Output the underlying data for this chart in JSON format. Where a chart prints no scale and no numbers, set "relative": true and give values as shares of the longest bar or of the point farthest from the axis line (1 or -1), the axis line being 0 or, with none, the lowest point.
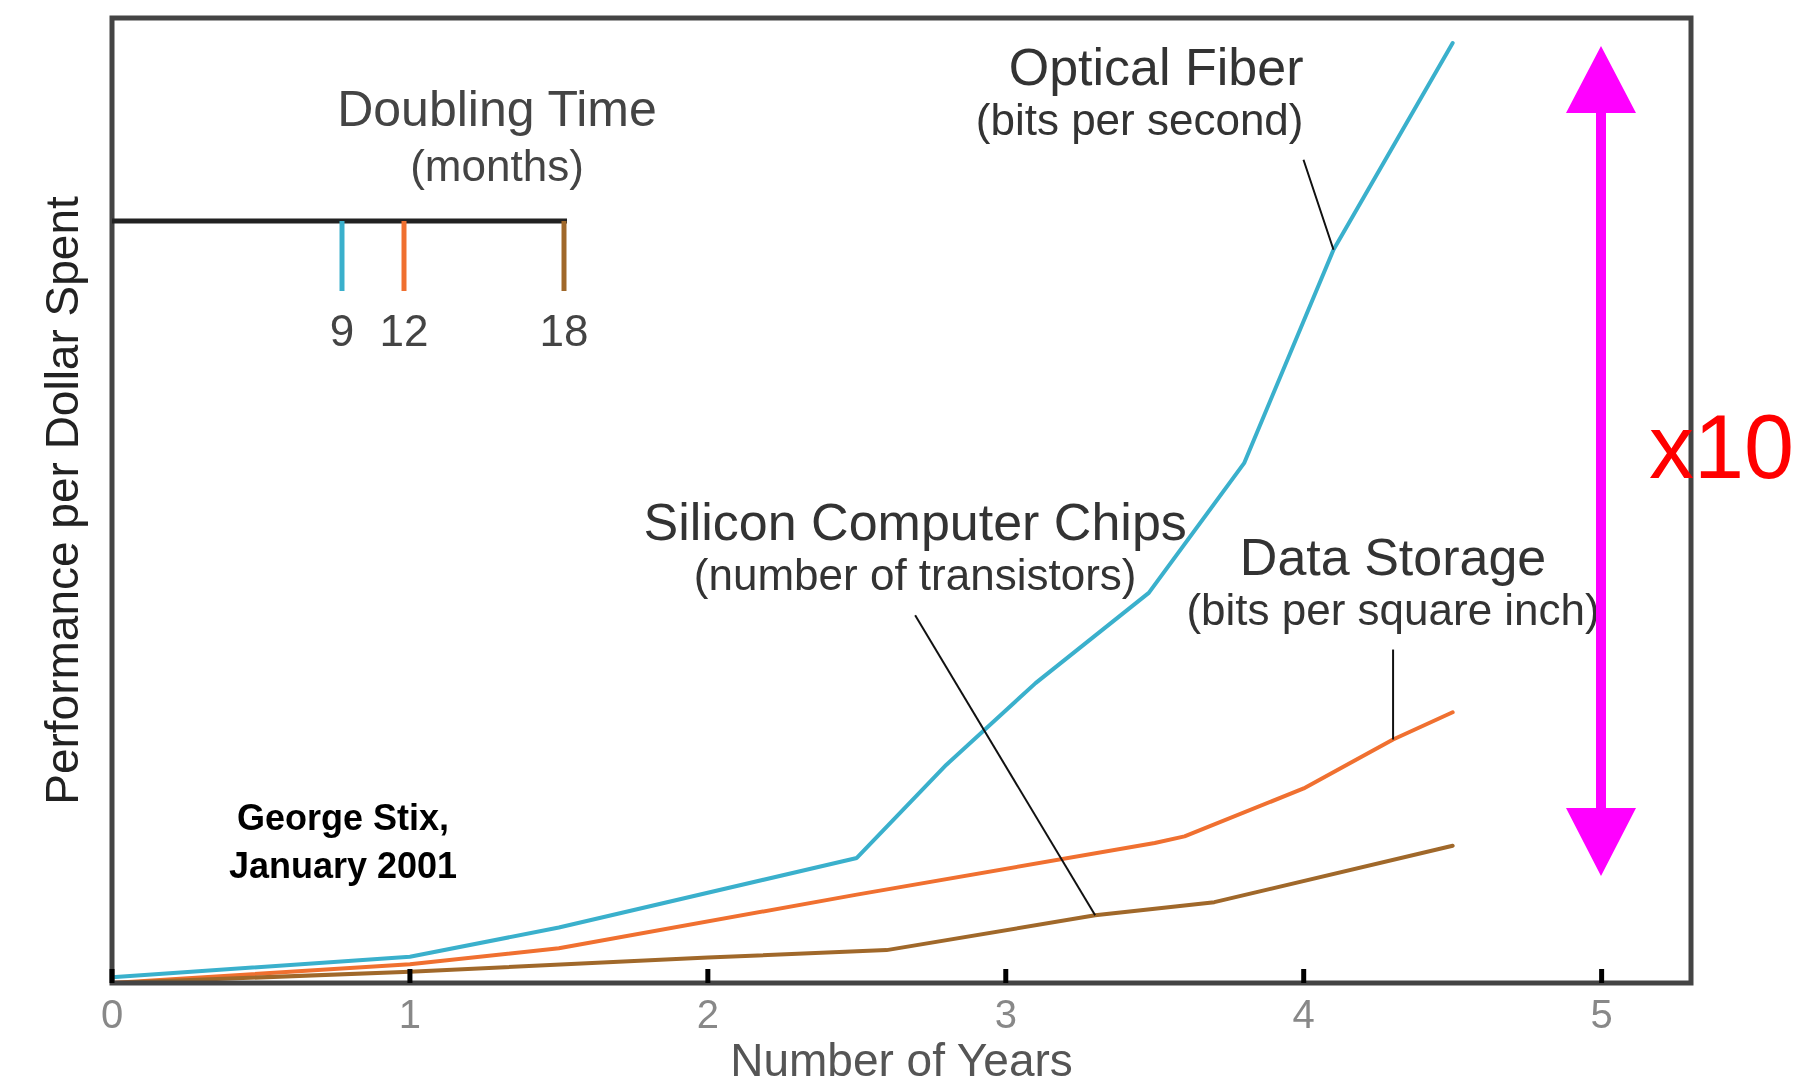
{
  "chart_data": {
    "type": "line",
    "relative": true,
    "xlabel": "Number of Years",
    "ylabel": "Performance per Dollar Spent",
    "legend_title": "Doubling Time (months)",
    "legend": "top left",
    "xlim": [
      0,
      5.3
    ],
    "xticks": [
      0,
      1,
      2,
      3,
      4,
      5
    ],
    "series": [
      {
        "name": "9",
        "color": "#3ab0cc",
        "x": [
          0,
          1,
          1.5,
          2.5,
          2.8,
          3.1,
          3.48,
          3.8,
          4.1,
          4.5
        ],
        "values": [
          0.006,
          0.028,
          0.059,
          0.133,
          0.232,
          0.319,
          0.415,
          0.553,
          0.78,
          1
        ]
      },
      {
        "name": "12",
        "color": "#f07030",
        "x": [
          0,
          1,
          1.5,
          2.5,
          3.5,
          3.6,
          4,
          4.3,
          4.5
        ],
        "values": [
          0,
          0.02,
          0.037,
          0.094,
          0.149,
          0.156,
          0.207,
          0.259,
          0.288
        ]
      },
      {
        "name": "18",
        "color": "#a0682a",
        "x": [
          0,
          1,
          2,
          2.6,
          3.3,
          3.7,
          4.5
        ],
        "values": [
          0,
          0.012,
          0.027,
          0.035,
          0.072,
          0.086,
          0.146
        ]
      }
    ],
    "annotations": [
      {
        "text": "Optical Fiber\n(bits per second)",
        "x": 4.1,
        "y": 0.78
      },
      {
        "text": "Silicon Computer Chips\n(number of transistors)",
        "x": 3.3,
        "y": 0.072
      },
      {
        "text": "Data Storage\n(bits per square inch)",
        "x": 4.3,
        "y": 0.259
      },
      "George Stix,\nJanuary 2001",
      "x10"
    ]
  }
}
